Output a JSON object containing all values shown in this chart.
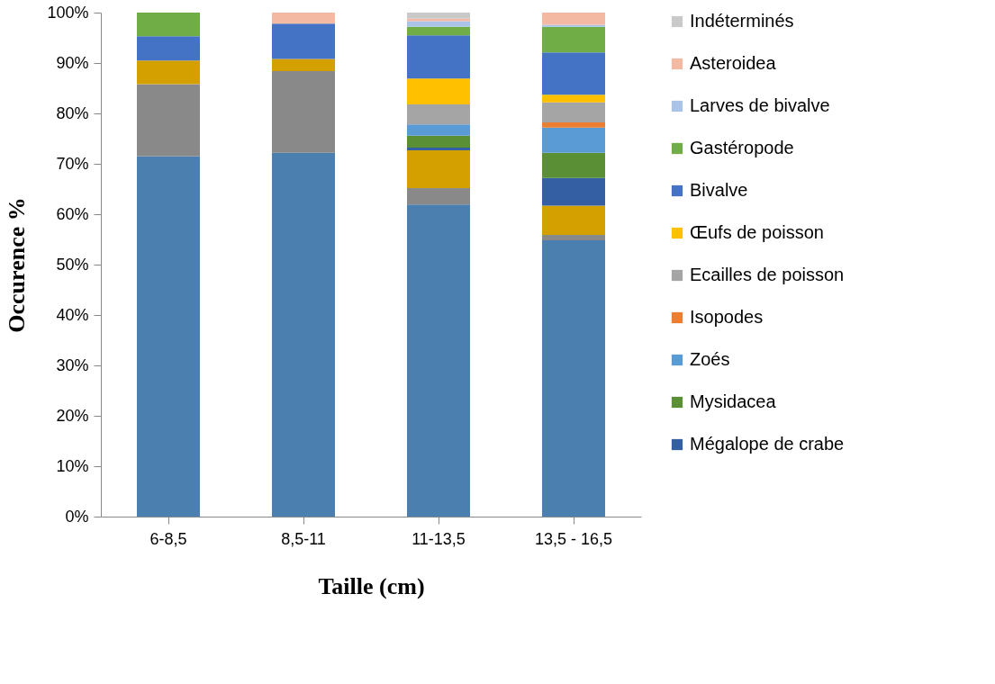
{
  "chart_data": {
    "type": "bar",
    "stacked": true,
    "xlabel": "Taille (cm)",
    "ylabel": "Occurence %",
    "categories": [
      "6-8,5",
      "8,5-11",
      "11-13,5",
      "13,5 - 16,5"
    ],
    "ylim": [
      0,
      100
    ],
    "yticks": [
      {
        "value": 0,
        "label": "0%"
      },
      {
        "value": 10,
        "label": "10%"
      },
      {
        "value": 20,
        "label": "20%"
      },
      {
        "value": 30,
        "label": "30%"
      },
      {
        "value": 40,
        "label": "40%"
      },
      {
        "value": 50,
        "label": "50%"
      },
      {
        "value": 60,
        "label": "60%"
      },
      {
        "value": 70,
        "label": "70%"
      },
      {
        "value": 80,
        "label": "80%"
      },
      {
        "value": 90,
        "label": "90%"
      },
      {
        "value": 100,
        "label": "100%"
      }
    ],
    "grid": false,
    "legend": "right",
    "series": [
      {
        "color": "#4a7fb0",
        "values": [
          71.5,
          72.2,
          61.9,
          54.8
        ]
      },
      {
        "color": "#898989",
        "values": [
          14.3,
          16.2,
          3.3,
          1.1
        ]
      },
      {
        "color": "#d4a000",
        "values": [
          4.7,
          2.4,
          7.5,
          5.8
        ]
      },
      {
        "name": "Mégalope de crabe",
        "color": "#355fa3",
        "values": [
          null,
          null,
          0.5,
          5.5
        ]
      },
      {
        "name": "Mysidacea",
        "color": "#5a8f36",
        "values": [
          null,
          null,
          2.4,
          5.0
        ]
      },
      {
        "name": "Zoés",
        "color": "#5b9bd5",
        "values": [
          null,
          null,
          2.2,
          5.0
        ]
      },
      {
        "name": "Isopodes",
        "color": "#ed7d31",
        "values": [
          null,
          null,
          null,
          1.0
        ]
      },
      {
        "name": "Ecailles de poisson",
        "color": "#a5a5a5",
        "values": [
          null,
          null,
          4.0,
          4.0
        ]
      },
      {
        "name": "Œufs de poisson",
        "color": "#ffc000",
        "values": [
          null,
          null,
          5.1,
          1.5
        ]
      },
      {
        "name": "Bivalve",
        "color": "#4472c4",
        "values": [
          4.8,
          7.0,
          8.6,
          8.4
        ]
      },
      {
        "name": "Gastéropode",
        "color": "#70ad47",
        "values": [
          4.7,
          null,
          1.7,
          5.1
        ]
      },
      {
        "name": "Larves de bivalve",
        "color": "#a9c4e6",
        "values": [
          null,
          null,
          1.1,
          0.4
        ]
      },
      {
        "name": "Asteroidea",
        "color": "#f4b9a2",
        "values": [
          null,
          2.2,
          0.5,
          2.4
        ]
      },
      {
        "name": "Indéterminés",
        "color": "#c9c9c9",
        "values": [
          null,
          null,
          1.2,
          null
        ]
      }
    ]
  }
}
